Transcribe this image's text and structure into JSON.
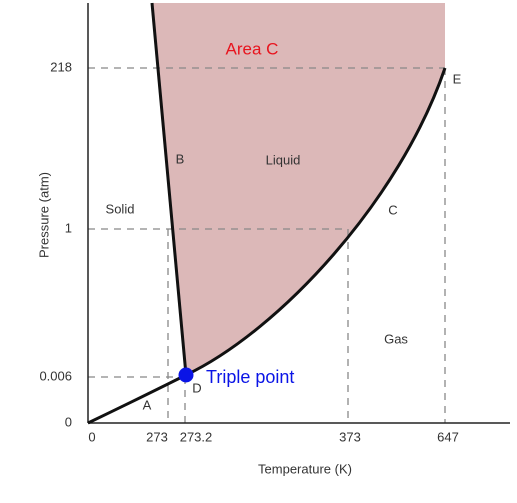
{
  "axes": {
    "x_title": "Temperature (K)",
    "y_title": "Pressure (atm)",
    "x_ticks": [
      "0",
      "273",
      "273.2",
      "373",
      "647"
    ],
    "y_ticks": [
      "218",
      "1",
      "0.006",
      "0"
    ]
  },
  "labels": {
    "area": "Area C",
    "liquid": "Liquid",
    "solid": "Solid",
    "gas": "Gas",
    "a": "A",
    "b": "B",
    "c": "C",
    "d": "D",
    "e": "E",
    "triple_point": "Triple point"
  }
}
